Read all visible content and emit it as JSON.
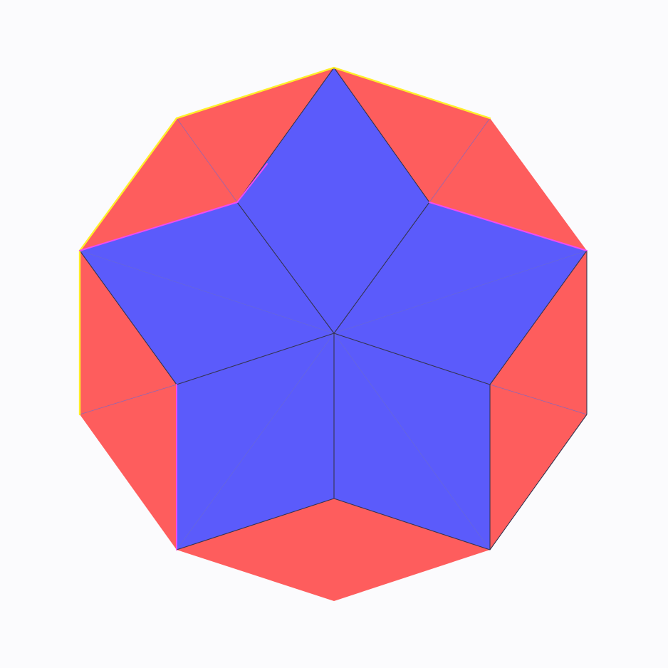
{
  "figure": {
    "description_name": "decagon-star-tiling",
    "colors": {
      "background": "#fbfbfd",
      "outer_faces": "#fe5d5d",
      "star_faces": "#5b5bfb",
      "edge": "#34344f",
      "highlight_yellow": "#ffef2a",
      "highlight_magenta": "#f24bf2"
    }
  }
}
